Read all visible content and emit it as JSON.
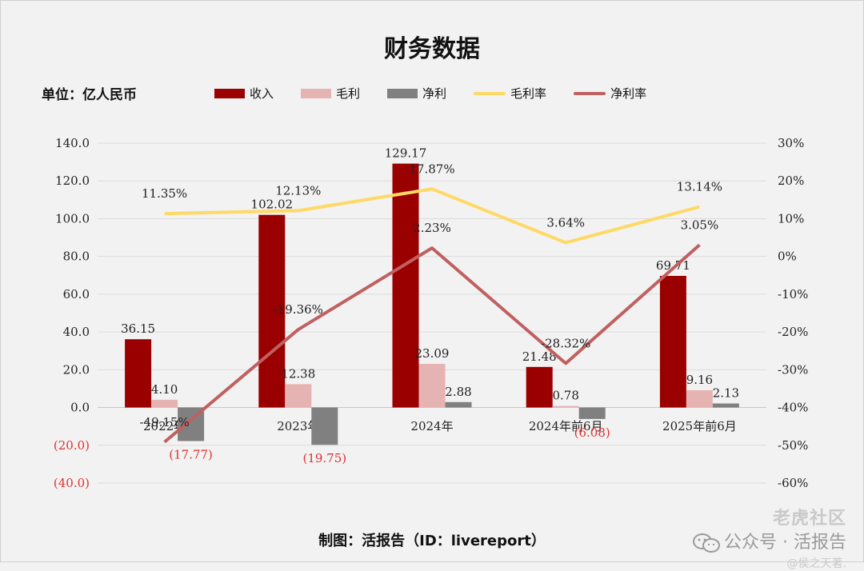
{
  "title": "财务数据",
  "unit_label": "单位：亿人民币",
  "legend": [
    {
      "label": "收入",
      "kind": "bar",
      "color": "#9b0000"
    },
    {
      "label": "毛利",
      "kind": "bar",
      "color": "#e6b3b3"
    },
    {
      "label": "净利",
      "kind": "bar",
      "color": "#808080"
    },
    {
      "label": "毛利率",
      "kind": "line",
      "color": "#ffd966"
    },
    {
      "label": "净利率",
      "kind": "line",
      "color": "#c06060"
    }
  ],
  "caption": "制图：活报告（ID：livereport）",
  "watermark": {
    "line1": "老虎社区",
    "line2": "公众号 · 活报告",
    "line3": "@侯之天著."
  },
  "chart_data": {
    "type": "bar",
    "categories": [
      "2022年",
      "2023年",
      "2024年",
      "2024年前6月",
      "2025年前6月"
    ],
    "series": [
      {
        "name": "收入",
        "axis": "left",
        "values": [
          36.15,
          102.02,
          129.17,
          21.48,
          69.71
        ],
        "labels": [
          "36.15",
          "102.02",
          "129.17",
          "21.48",
          "69.71"
        ]
      },
      {
        "name": "毛利",
        "axis": "left",
        "values": [
          4.1,
          12.38,
          23.09,
          0.78,
          9.16
        ],
        "labels": [
          "4.10",
          "12.38",
          "23.09",
          "0.78",
          "9.16"
        ]
      },
      {
        "name": "净利",
        "axis": "left",
        "values": [
          -17.77,
          -19.75,
          2.88,
          -6.08,
          2.13
        ],
        "labels": [
          "(17.77)",
          "(19.75)",
          "2.88",
          "(6.08)",
          "2.13"
        ]
      },
      {
        "name": "毛利率",
        "axis": "right",
        "type": "line",
        "values": [
          11.35,
          12.13,
          17.87,
          3.64,
          13.14
        ],
        "labels": [
          "11.35%",
          "12.13%",
          "17.87%",
          "3.64%",
          "13.14%"
        ]
      },
      {
        "name": "净利率",
        "axis": "right",
        "type": "line",
        "values": [
          -49.15,
          -19.36,
          2.23,
          -28.32,
          3.05
        ],
        "labels": [
          "-49.15%",
          "-19.36%",
          "2.23%",
          "-28.32%",
          "3.05%"
        ]
      }
    ],
    "left_axis": {
      "ylim": [
        -40,
        140
      ],
      "ticks": [
        "(40.0)",
        "(20.0)",
        "0.0",
        "20.0",
        "40.0",
        "60.0",
        "80.0",
        "100.0",
        "120.0",
        "140.0"
      ],
      "tick_values": [
        -40,
        -20,
        0,
        20,
        40,
        60,
        80,
        100,
        120,
        140
      ]
    },
    "right_axis": {
      "ylim": [
        -60,
        30
      ],
      "ticks": [
        "-60%",
        "-50%",
        "-40%",
        "-30%",
        "-20%",
        "-10%",
        "0%",
        "10%",
        "20%",
        "30%"
      ],
      "tick_values": [
        -60,
        -50,
        -40,
        -30,
        -20,
        -10,
        0,
        10,
        20,
        30
      ]
    },
    "grid": true,
    "legend_position": "top"
  }
}
